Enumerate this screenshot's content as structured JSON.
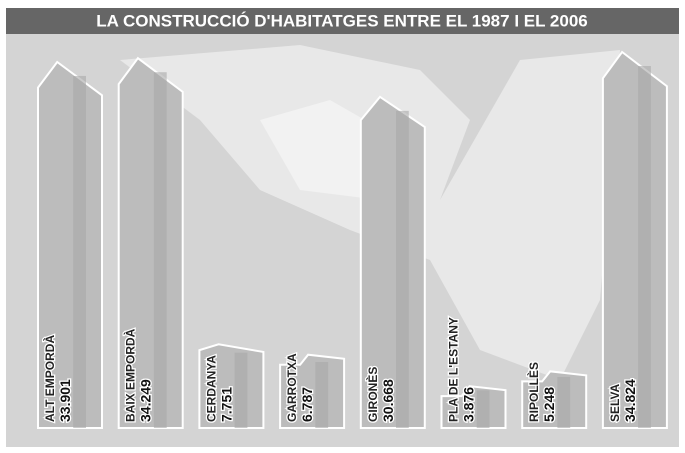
{
  "chart_data": {
    "type": "bar",
    "title": "LA CONSTRUCCIÓ D'HABITATGES ENTRE EL 1987 I EL 2006",
    "categories": [
      "ALT EMPORDÀ",
      "BAIX EMPORDÀ",
      "CERDANYA",
      "GARROTXA",
      "GIRONÈS",
      "PLA DE L'ESTANY",
      "RIPOLLÈS",
      "SELVA"
    ],
    "values": [
      33901,
      34249,
      7751,
      6787,
      30668,
      3876,
      5248,
      34824
    ],
    "value_labels": [
      "33.901",
      "34.249",
      "7.751",
      "6.787",
      "30.668",
      "3.876",
      "5.248",
      "34.824"
    ],
    "color": "#bcbcbc"
  }
}
